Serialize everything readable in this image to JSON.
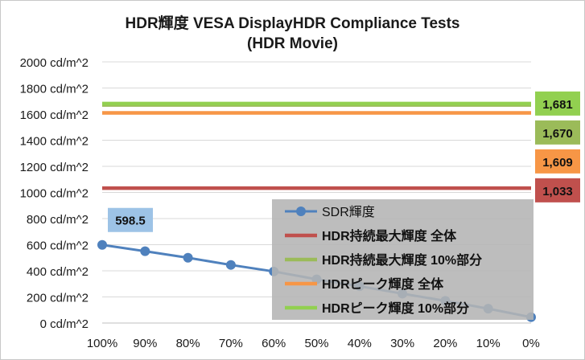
{
  "chart_data": {
    "type": "line",
    "title_line1": "HDR輝度 VESA DisplayHDR Compliance Tests",
    "title_line2": "(HDR Movie)",
    "y_tick_labels": [
      "0 cd/m^2",
      "200 cd/m^2",
      "400 cd/m^2",
      "600 cd/m^2",
      "800 cd/m^2",
      "1000 cd/m^2",
      "1200 cd/m^2",
      "1400 cd/m^2",
      "1600 cd/m^2",
      "1800 cd/m^2",
      "2000 cd/m^2"
    ],
    "ylim": [
      0,
      2000
    ],
    "categories": [
      "100%",
      "90%",
      "80%",
      "70%",
      "60%",
      "50%",
      "40%",
      "30%",
      "20%",
      "10%",
      "0%"
    ],
    "series": [
      {
        "name": "SDR輝度",
        "kind": "line-marker",
        "color": "#4f81bd",
        "values": [
          598.5,
          550,
          500,
          445,
          395,
          335,
          282,
          225,
          170,
          110,
          45
        ]
      },
      {
        "name": "HDR持続最大輝度 全体",
        "kind": "hline",
        "color": "#c0504d",
        "value": 1033,
        "label": "1,033"
      },
      {
        "name": "HDR持続最大輝度 10%部分",
        "kind": "hline",
        "color": "#9bbb59",
        "value": 1670,
        "label": "1,670"
      },
      {
        "name": "HDRピーク輝度 全体",
        "kind": "hline",
        "color": "#f79646",
        "value": 1609,
        "label": "1,609"
      },
      {
        "name": "HDRピーク輝度 10%部分",
        "kind": "hline",
        "color": "#92d050",
        "value": 1681,
        "label": "1,681"
      }
    ],
    "data_label": {
      "text": "598.5",
      "series": 0,
      "index": 0
    },
    "grid": true,
    "legend_position": "center-right, overlapping plot"
  }
}
